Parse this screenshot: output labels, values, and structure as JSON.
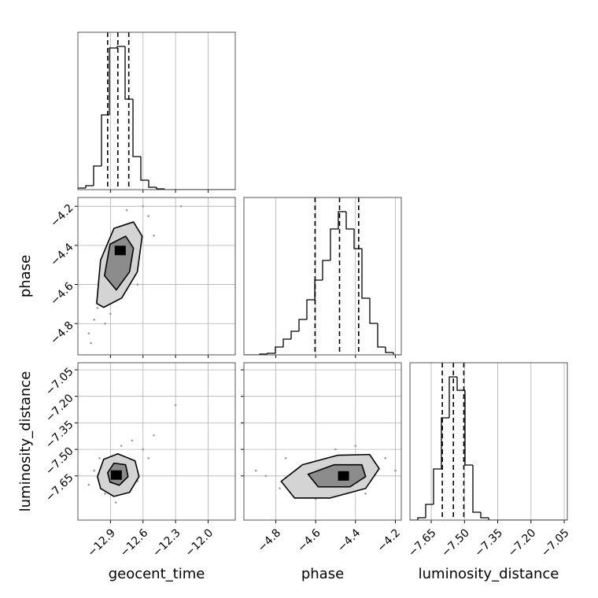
{
  "chart_data": [
    {
      "type": "histogram",
      "bins": [
        -13.2,
        -13.1275,
        -13.055,
        -12.9825,
        -12.91,
        -12.8375,
        -12.765,
        -12.6925,
        -12.62,
        -12.5475,
        -12.475,
        -12.4025,
        -12.33,
        -12.2575,
        -12.185,
        -12.1125,
        -12.04,
        -11.9675,
        -11.895,
        -11.8225,
        -11.75
      ],
      "counts": [
        2,
        5,
        30,
        95,
        180,
        182,
        115,
        42,
        12,
        3,
        1,
        0,
        0,
        0,
        0,
        0,
        0,
        0,
        0,
        0
      ],
      "quantiles": [
        -12.926,
        -12.832,
        -12.731
      ],
      "xlim": [
        -13.2,
        -11.75
      ],
      "ylim": [
        0,
        200
      ],
      "xticks": [
        {
          "value": -12.9,
          "label": "−12.9"
        },
        {
          "value": -12.6,
          "label": "−12.6"
        },
        {
          "value": -12.3,
          "label": "−12.3"
        },
        {
          "value": -12,
          "label": "−12.0"
        }
      ],
      "grid": true,
      "color": "#000000"
    },
    {
      "type": "scatter",
      "x": [
        -13.05,
        -13.1,
        -12.95,
        -12.55,
        -12.6,
        -12.9,
        -13.0,
        -12.7,
        -12.5,
        -12.25,
        -12.65,
        -13.08,
        -12.75,
        -13.02
      ],
      "y": [
        -4.78,
        -4.85,
        -4.8,
        -4.25,
        -4.2,
        -4.75,
        -4.6,
        -4.3,
        -4.35,
        -4.2,
        -4.6,
        -4.9,
        -4.22,
        -4.72
      ],
      "contours": [
        {
          "x": [
            -13.027,
            -12.991,
            -12.868,
            -12.688,
            -12.608,
            -12.652,
            -12.796,
            -12.962
          ],
          "y": [
            -4.697,
            -4.475,
            -4.313,
            -4.28,
            -4.353,
            -4.535,
            -4.669,
            -4.717
          ]
        },
        {
          "x": [
            -12.955,
            -12.904,
            -12.76,
            -12.688,
            -12.724,
            -12.846
          ],
          "y": [
            -4.555,
            -4.394,
            -4.353,
            -4.414,
            -4.535,
            -4.628
          ]
        }
      ],
      "peak": {
        "x": -12.81,
        "y": -4.426
      },
      "xlim": [
        -13.2,
        -11.75
      ],
      "ylim": [
        -4.96,
        -4.155
      ],
      "xticks": [
        {
          "value": -12.9,
          "label": "−12.9"
        },
        {
          "value": -12.6,
          "label": "−12.6"
        },
        {
          "value": -12.3,
          "label": "−12.3"
        },
        {
          "value": -12,
          "label": "−12.0"
        }
      ],
      "yticks": [
        {
          "value": -4.2,
          "label": "−4.2"
        },
        {
          "value": -4.4,
          "label": "−4.4"
        },
        {
          "value": -4.6,
          "label": "−4.6"
        },
        {
          "value": -4.8,
          "label": "−4.8"
        }
      ],
      "ylabel": "phase",
      "grid": true,
      "color": "#9a9a9a",
      "contour_fills": [
        "#d4d4d4",
        "#8c8c8c"
      ]
    },
    {
      "type": "histogram",
      "bins": [
        -4.96,
        -4.9205,
        -4.881,
        -4.8415,
        -4.802,
        -4.7625,
        -4.723,
        -4.6835,
        -4.644,
        -4.6045,
        -4.565,
        -4.5255,
        -4.486,
        -4.4465,
        -4.407,
        -4.3675,
        -4.328,
        -4.2885,
        -4.249,
        -4.2095,
        -4.17
      ],
      "counts": [
        0,
        0,
        1,
        2,
        10,
        20,
        30,
        45,
        70,
        95,
        120,
        160,
        182,
        160,
        135,
        72,
        40,
        10,
        3,
        0
      ],
      "quantiles": [
        -4.603,
        -4.48,
        -4.384
      ],
      "xlim": [
        -4.96,
        -4.17
      ],
      "ylim": [
        0,
        200
      ],
      "xticks": [
        {
          "value": -4.8,
          "label": "−4.8"
        },
        {
          "value": -4.6,
          "label": "−4.6"
        },
        {
          "value": -4.4,
          "label": "−4.4"
        },
        {
          "value": -4.2,
          "label": "−4.2"
        }
      ],
      "grid": true,
      "color": "#000000"
    },
    {
      "type": "scatter",
      "x": [
        -13.05,
        -12.6,
        -12.55,
        -12.7,
        -12.3,
        -12.95,
        -12.85,
        -13.1,
        -12.65,
        -12.8,
        -12.5,
        -13.0
      ],
      "y": [
        -7.62,
        -7.5,
        -7.55,
        -7.45,
        -7.25,
        -7.75,
        -7.8,
        -7.7,
        -7.68,
        -7.48,
        -7.42,
        -7.55
      ],
      "contours": [
        {
          "x": [
            -13.02,
            -12.962,
            -12.832,
            -12.673,
            -12.637,
            -12.724,
            -12.868,
            -12.991
          ],
          "y": [
            -7.654,
            -7.556,
            -7.525,
            -7.565,
            -7.654,
            -7.743,
            -7.766,
            -7.721
          ]
        },
        {
          "x": [
            -12.926,
            -12.868,
            -12.76,
            -12.738,
            -12.818,
            -12.904
          ],
          "y": [
            -7.632,
            -7.578,
            -7.587,
            -7.654,
            -7.703,
            -7.685
          ]
        }
      ],
      "peak": {
        "x": -12.846,
        "y": -7.645
      },
      "xlim": [
        -13.2,
        -11.75
      ],
      "ylim": [
        -7.9,
        -7.01
      ],
      "xticks": [
        {
          "value": -12.9,
          "label": "−12.9"
        },
        {
          "value": -12.6,
          "label": "−12.6"
        },
        {
          "value": -12.3,
          "label": "−12.3"
        },
        {
          "value": -12,
          "label": "−12.0"
        }
      ],
      "yticks": [
        {
          "value": -7.05,
          "label": "−7.05"
        },
        {
          "value": -7.2,
          "label": "−7.20"
        },
        {
          "value": -7.35,
          "label": "−7.35"
        },
        {
          "value": -7.5,
          "label": "−7.50"
        },
        {
          "value": -7.65,
          "label": "−7.65"
        }
      ],
      "xlabel": "geocent_time",
      "ylabel": "luminosity_distance",
      "grid": true,
      "color": "#9a9a9a",
      "contour_fills": [
        "#d4d4d4",
        "#8c8c8c"
      ]
    },
    {
      "type": "scatter",
      "x": [
        -4.85,
        -4.9,
        -4.78,
        -4.25,
        -4.3,
        -4.75,
        -4.5,
        -4.4,
        -4.2,
        -4.6,
        -4.35,
        -4.7
      ],
      "y": [
        -7.65,
        -7.62,
        -7.72,
        -7.55,
        -7.6,
        -7.55,
        -7.5,
        -7.48,
        -7.62,
        -7.78,
        -7.75,
        -7.68
      ],
      "contours": [
        {
          "x": [
            -4.773,
            -4.666,
            -4.488,
            -4.329,
            -4.281,
            -4.349,
            -4.527,
            -4.706
          ],
          "y": [
            -7.681,
            -7.587,
            -7.533,
            -7.529,
            -7.609,
            -7.721,
            -7.775,
            -7.775
          ]
        },
        {
          "x": [
            -4.638,
            -4.507,
            -4.368,
            -4.349,
            -4.428,
            -4.587
          ],
          "y": [
            -7.641,
            -7.587,
            -7.587,
            -7.654,
            -7.712,
            -7.712
          ]
        }
      ],
      "peak": {
        "x": -4.46,
        "y": -7.65
      },
      "xlim": [
        -4.96,
        -4.17
      ],
      "ylim": [
        -7.9,
        -7.01
      ],
      "xticks": [
        {
          "value": -4.8,
          "label": "−4.8"
        },
        {
          "value": -4.6,
          "label": "−4.6"
        },
        {
          "value": -4.4,
          "label": "−4.4"
        },
        {
          "value": -4.2,
          "label": "−4.2"
        }
      ],
      "yticks": [
        {
          "value": -7.05,
          "label": "−7.05"
        },
        {
          "value": -7.2,
          "label": "−7.20"
        },
        {
          "value": -7.35,
          "label": "−7.35"
        },
        {
          "value": -7.5,
          "label": "−7.50"
        },
        {
          "value": -7.65,
          "label": "−7.65"
        }
      ],
      "xlabel": "phase",
      "grid": true,
      "color": "#9a9a9a",
      "contour_fills": [
        "#d4d4d4",
        "#8c8c8c"
      ]
    },
    {
      "type": "histogram",
      "bins": [
        -7.746,
        -7.7105,
        -7.675,
        -7.6395,
        -7.604,
        -7.5685,
        -7.533,
        -7.4975,
        -7.462,
        -7.4265,
        -7.391,
        -7.3555,
        -7.32,
        -7.2845,
        -7.249,
        -7.2135,
        -7.178,
        -7.1425,
        -7.107,
        -7.0715,
        -7.036
      ],
      "counts": [
        0,
        3,
        20,
        65,
        130,
        182,
        165,
        70,
        10,
        3,
        0,
        0,
        0,
        0,
        0,
        0,
        0,
        0,
        0,
        0
      ],
      "quantiles": [
        -7.6,
        -7.55,
        -7.503
      ],
      "xlim": [
        -7.746,
        -7.036
      ],
      "ylim": [
        0,
        200
      ],
      "xticks": [
        {
          "value": -7.65,
          "label": "−7.65"
        },
        {
          "value": -7.5,
          "label": "−7.50"
        },
        {
          "value": -7.35,
          "label": "−7.35"
        },
        {
          "value": -7.2,
          "label": "−7.20"
        },
        {
          "value": -7.05,
          "label": "−7.05"
        }
      ],
      "xlabel": "luminosity_distance",
      "grid": true,
      "color": "#000000"
    }
  ]
}
